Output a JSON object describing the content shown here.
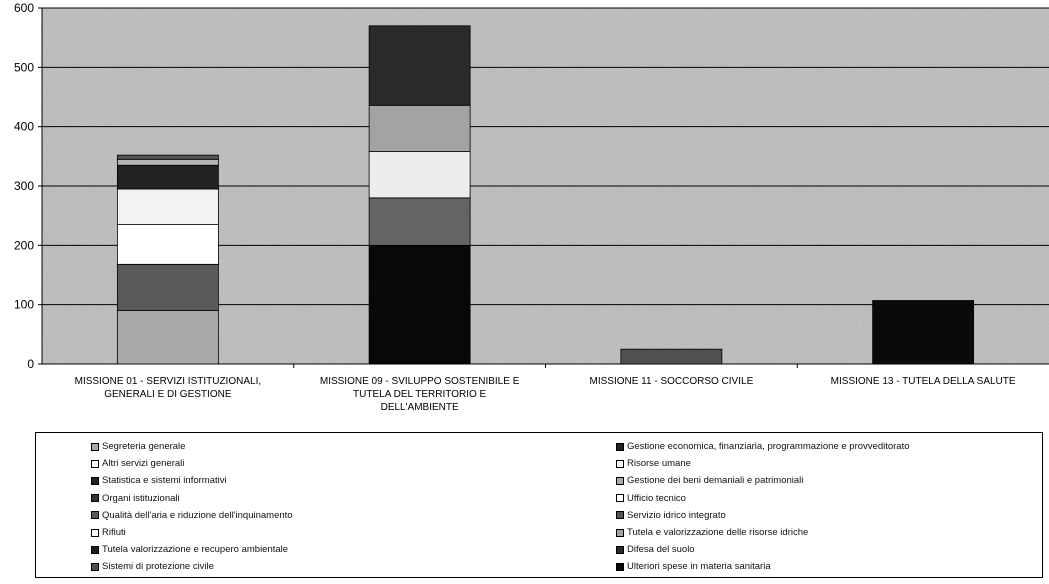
{
  "chart_data": {
    "type": "bar",
    "stacked": true,
    "title": "",
    "xlabel": "",
    "ylabel": "",
    "ylim": [
      0,
      600
    ],
    "yticks": [
      0,
      100,
      200,
      300,
      400,
      500,
      600
    ],
    "grid": true,
    "legend_position": "bottom",
    "plot_background": "#bdbdbd",
    "categories": [
      [
        "MISSIONE 01 - SERVIZI ISTITUZIONALI,",
        "GENERALI E DI GESTIONE"
      ],
      [
        "MISSIONE 09 - SVILUPPO SOSTENIBILE E",
        "TUTELA DEL TERRITORIO E",
        "DELL'AMBIENTE"
      ],
      [
        "MISSIONE 11 - SOCCORSO CIVILE"
      ],
      [
        "MISSIONE 13 - TUTELA DELLA SALUTE"
      ]
    ],
    "series": [
      {
        "name": "Segreteria generale",
        "color": "#a9a9a9",
        "values": [
          90,
          0,
          0,
          0
        ]
      },
      {
        "name": "Gestione economica, finanziaria, programmazione e provveditorato",
        "color": "#5a5a5a",
        "values": [
          78,
          0,
          0,
          0
        ]
      },
      {
        "name": "Altri servizi generali",
        "color": "#ffffff",
        "values": [
          67,
          0,
          0,
          0
        ]
      },
      {
        "name": "Risorse umane",
        "color": "#f2f2f2",
        "values": [
          60,
          0,
          0,
          0
        ]
      },
      {
        "name": "Statistica e sistemi informativi",
        "color": "#222222",
        "values": [
          40,
          0,
          0,
          0
        ]
      },
      {
        "name": "Gestione dei beni demaniali e patrimoniali",
        "color": "#b5b5b5",
        "values": [
          10,
          0,
          0,
          0
        ]
      },
      {
        "name": "Organi istituzionali",
        "color": "#555555",
        "values": [
          7,
          0,
          0,
          0
        ]
      },
      {
        "name": "Ufficio tecnico",
        "color": "#fafafa",
        "values": [
          0,
          0,
          0,
          0
        ]
      },
      {
        "name": "Qualità dell'aria e riduzione dell'inquinamento",
        "color": "#333333",
        "values": [
          0,
          0,
          0,
          0
        ]
      },
      {
        "name": "Servizio idrico integrato",
        "color": "#080808",
        "values": [
          0,
          200,
          0,
          0
        ]
      },
      {
        "name": "Rifiuti",
        "color": "#646464",
        "values": [
          0,
          80,
          0,
          0
        ]
      },
      {
        "name": "Tutela e valorizzazione delle risorse idriche",
        "color": "#ececec",
        "values": [
          0,
          78,
          0,
          0
        ]
      },
      {
        "name": "Tutela valorizzazione e recupero ambientale",
        "color": "#a3a3a3",
        "values": [
          0,
          78,
          0,
          0
        ]
      },
      {
        "name": "Difesa del suolo",
        "color": "#2a2a2a",
        "values": [
          0,
          134,
          0,
          0
        ]
      },
      {
        "name": "Sistemi di protezione civile",
        "color": "#505050",
        "values": [
          0,
          0,
          25,
          0
        ]
      },
      {
        "name": "Ulteriori spese in materia sanitaria",
        "color": "#0a0a0a",
        "values": [
          0,
          0,
          0,
          107
        ]
      }
    ]
  },
  "legend": {
    "left": [
      {
        "label": "Segreteria generale",
        "color": "#a9a9a9"
      },
      {
        "label": "Altri servizi generali",
        "color": "#ffffff"
      },
      {
        "label": "Statistica e sistemi informativi",
        "color": "#222222"
      },
      {
        "label": "Organi istituzionali",
        "color": "#333333"
      },
      {
        "label": "Qualità dell'aria e riduzione dell'inquinamento",
        "color": "#5a5a5a"
      },
      {
        "label": "Rifiuti",
        "color": "#ffffff"
      },
      {
        "label": "Tutela valorizzazione e recupero ambientale",
        "color": "#1a1a1a"
      },
      {
        "label": "Sistemi di protezione civile",
        "color": "#505050"
      }
    ],
    "right": [
      {
        "label": "Gestione economica, finanziaria, programmazione e provveditorato",
        "color": "#222222"
      },
      {
        "label": "Risorse umane",
        "color": "#ffffff"
      },
      {
        "label": "Gestione dei beni demaniali e patrimoniali",
        "color": "#a9a9a9"
      },
      {
        "label": "Ufficio tecnico",
        "color": "#ffffff"
      },
      {
        "label": "Servizio idrico integrato",
        "color": "#555555"
      },
      {
        "label": "Tutela e valorizzazione delle risorse idriche",
        "color": "#a3a3a3"
      },
      {
        "label": "Difesa del suolo",
        "color": "#2a2a2a"
      },
      {
        "label": "Ulteriori spese in materia sanitaria",
        "color": "#0a0a0a"
      }
    ]
  }
}
